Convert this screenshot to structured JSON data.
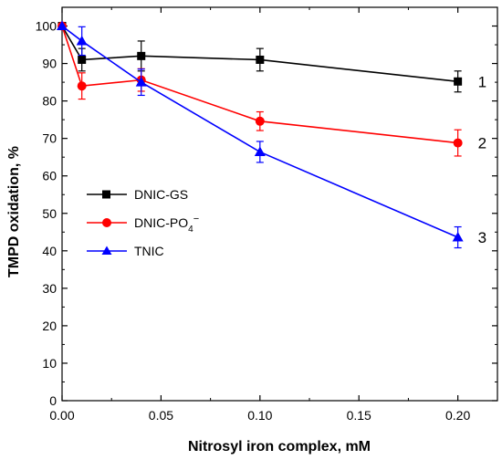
{
  "chart_data": {
    "type": "line",
    "xlabel": "Nitrosyl iron complex, mM",
    "ylabel": "TMPD oxidation, %",
    "xlim": [
      0,
      0.22
    ],
    "ylim": [
      0,
      105
    ],
    "x_ticks": [
      0.0,
      0.05,
      0.1,
      0.15,
      0.2
    ],
    "x_tick_labels": [
      "0.00",
      "0.05",
      "0.10",
      "0.15",
      "0.20"
    ],
    "y_ticks": [
      0,
      10,
      20,
      30,
      40,
      50,
      60,
      70,
      80,
      90,
      100
    ],
    "y_tick_labels": [
      "0",
      "10",
      "20",
      "30",
      "40",
      "50",
      "60",
      "70",
      "80",
      "90",
      "100"
    ],
    "grid": false,
    "legend_position": "middle-left",
    "series": [
      {
        "name": "DNIC-GS",
        "color": "#000000",
        "marker": "square",
        "label": "1",
        "x": [
          0.0,
          0.01,
          0.04,
          0.1,
          0.2
        ],
        "y": [
          100,
          91,
          92,
          91,
          85.2
        ],
        "err": [
          0,
          3,
          4,
          3,
          2.8
        ]
      },
      {
        "name_main": "DNIC-PO",
        "name_sub": "4",
        "name_sup": "−",
        "color": "#ff0000",
        "marker": "circle",
        "label": "2",
        "x": [
          0.0,
          0.01,
          0.04,
          0.1,
          0.2
        ],
        "y": [
          100,
          84,
          85.6,
          74.6,
          68.8
        ],
        "err": [
          0,
          3.5,
          3,
          2.5,
          3.5
        ]
      },
      {
        "name": "TNIC",
        "color": "#0000ff",
        "marker": "triangle",
        "label": "3",
        "x": [
          0.0,
          0.01,
          0.04,
          0.1,
          0.2
        ],
        "y": [
          100,
          96,
          85,
          66.4,
          43.6
        ],
        "err": [
          0,
          3.8,
          3.5,
          2.8,
          2.8
        ]
      }
    ]
  }
}
